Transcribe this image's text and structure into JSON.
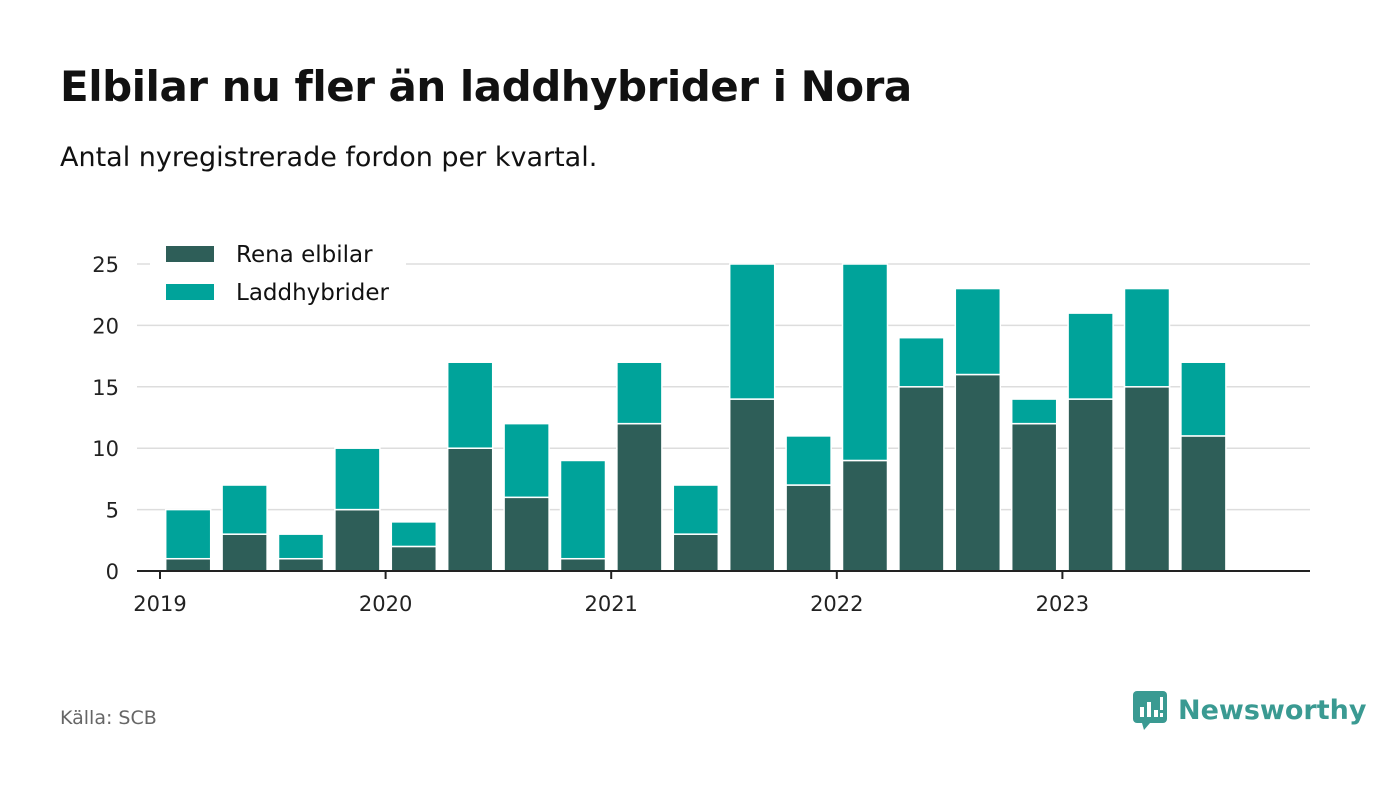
{
  "title": "Elbilar nu fler än laddhybrider i Nora",
  "subtitle": "Antal nyregistrerade fordon per kvartal.",
  "source": "Källa: SCB",
  "brand": {
    "name": "Newsworthy",
    "icon": "newsworthy-logo-icon"
  },
  "colors": {
    "elbilar": "#2e5e58",
    "laddhybrider": "#00a39a",
    "grid": "#dddddd",
    "axis": "#222222"
  },
  "chart_data": {
    "type": "bar",
    "stacked": true,
    "categories": [
      "2019 Q1",
      "2019 Q2",
      "2019 Q3",
      "2019 Q4",
      "2020 Q1",
      "2020 Q2",
      "2020 Q3",
      "2020 Q4",
      "2021 Q1",
      "2021 Q2",
      "2021 Q3",
      "2021 Q4",
      "2022 Q1",
      "2022 Q2",
      "2022 Q3",
      "2022 Q4",
      "2023 Q1",
      "2023 Q2",
      "2023 Q3",
      "2023 Q4"
    ],
    "series": [
      {
        "name": "Rena elbilar",
        "values": [
          1,
          3,
          1,
          5,
          2,
          10,
          6,
          1,
          12,
          3,
          14,
          7,
          9,
          15,
          16,
          12,
          14,
          15,
          11,
          null
        ]
      },
      {
        "name": "Laddhybrider",
        "values": [
          4,
          4,
          2,
          5,
          2,
          7,
          6,
          8,
          5,
          4,
          11,
          4,
          16,
          4,
          7,
          2,
          7,
          8,
          6,
          null
        ]
      }
    ],
    "x_tick_labels": [
      "2019",
      "2020",
      "2021",
      "2022",
      "2023"
    ],
    "y_ticks": [
      0,
      5,
      10,
      15,
      20,
      25
    ],
    "ylim": [
      0,
      25
    ],
    "grid": true,
    "legend_position": "top-left",
    "xlabel": "",
    "ylabel": ""
  }
}
